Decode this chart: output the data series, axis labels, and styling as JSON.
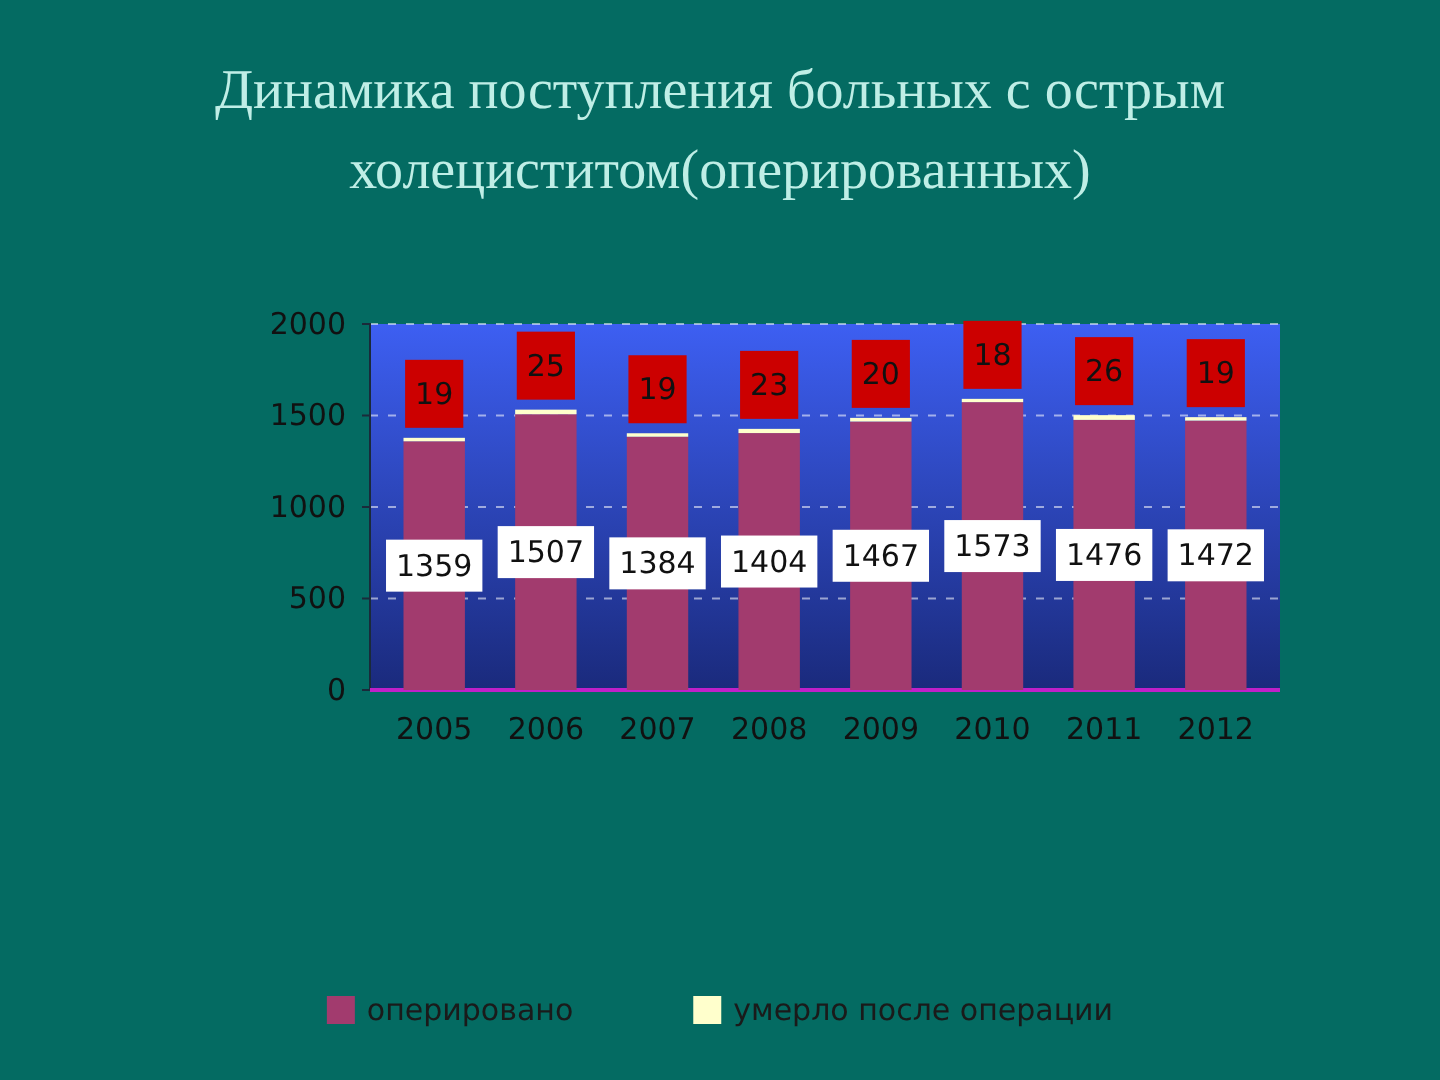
{
  "chart_data": {
    "type": "bar",
    "title": "Динамика поступления больных с острым холециститом(оперированных)",
    "categories": [
      "2005",
      "2006",
      "2007",
      "2008",
      "2009",
      "2010",
      "2011",
      "2012"
    ],
    "series": [
      {
        "name": "оперировано",
        "color": "#a23b6e",
        "values": [
          1359,
          1507,
          1384,
          1404,
          1467,
          1573,
          1476,
          1472
        ]
      },
      {
        "name": "умерло после операции",
        "color": "#ffffcc",
        "values": [
          19,
          25,
          19,
          23,
          20,
          18,
          26,
          19
        ]
      }
    ],
    "stacked": true,
    "ylim": [
      0,
      2000
    ],
    "yticks": [
      0,
      500,
      1000,
      1500,
      2000
    ],
    "grid": "y",
    "legend": "bottom",
    "data_labels": true
  }
}
